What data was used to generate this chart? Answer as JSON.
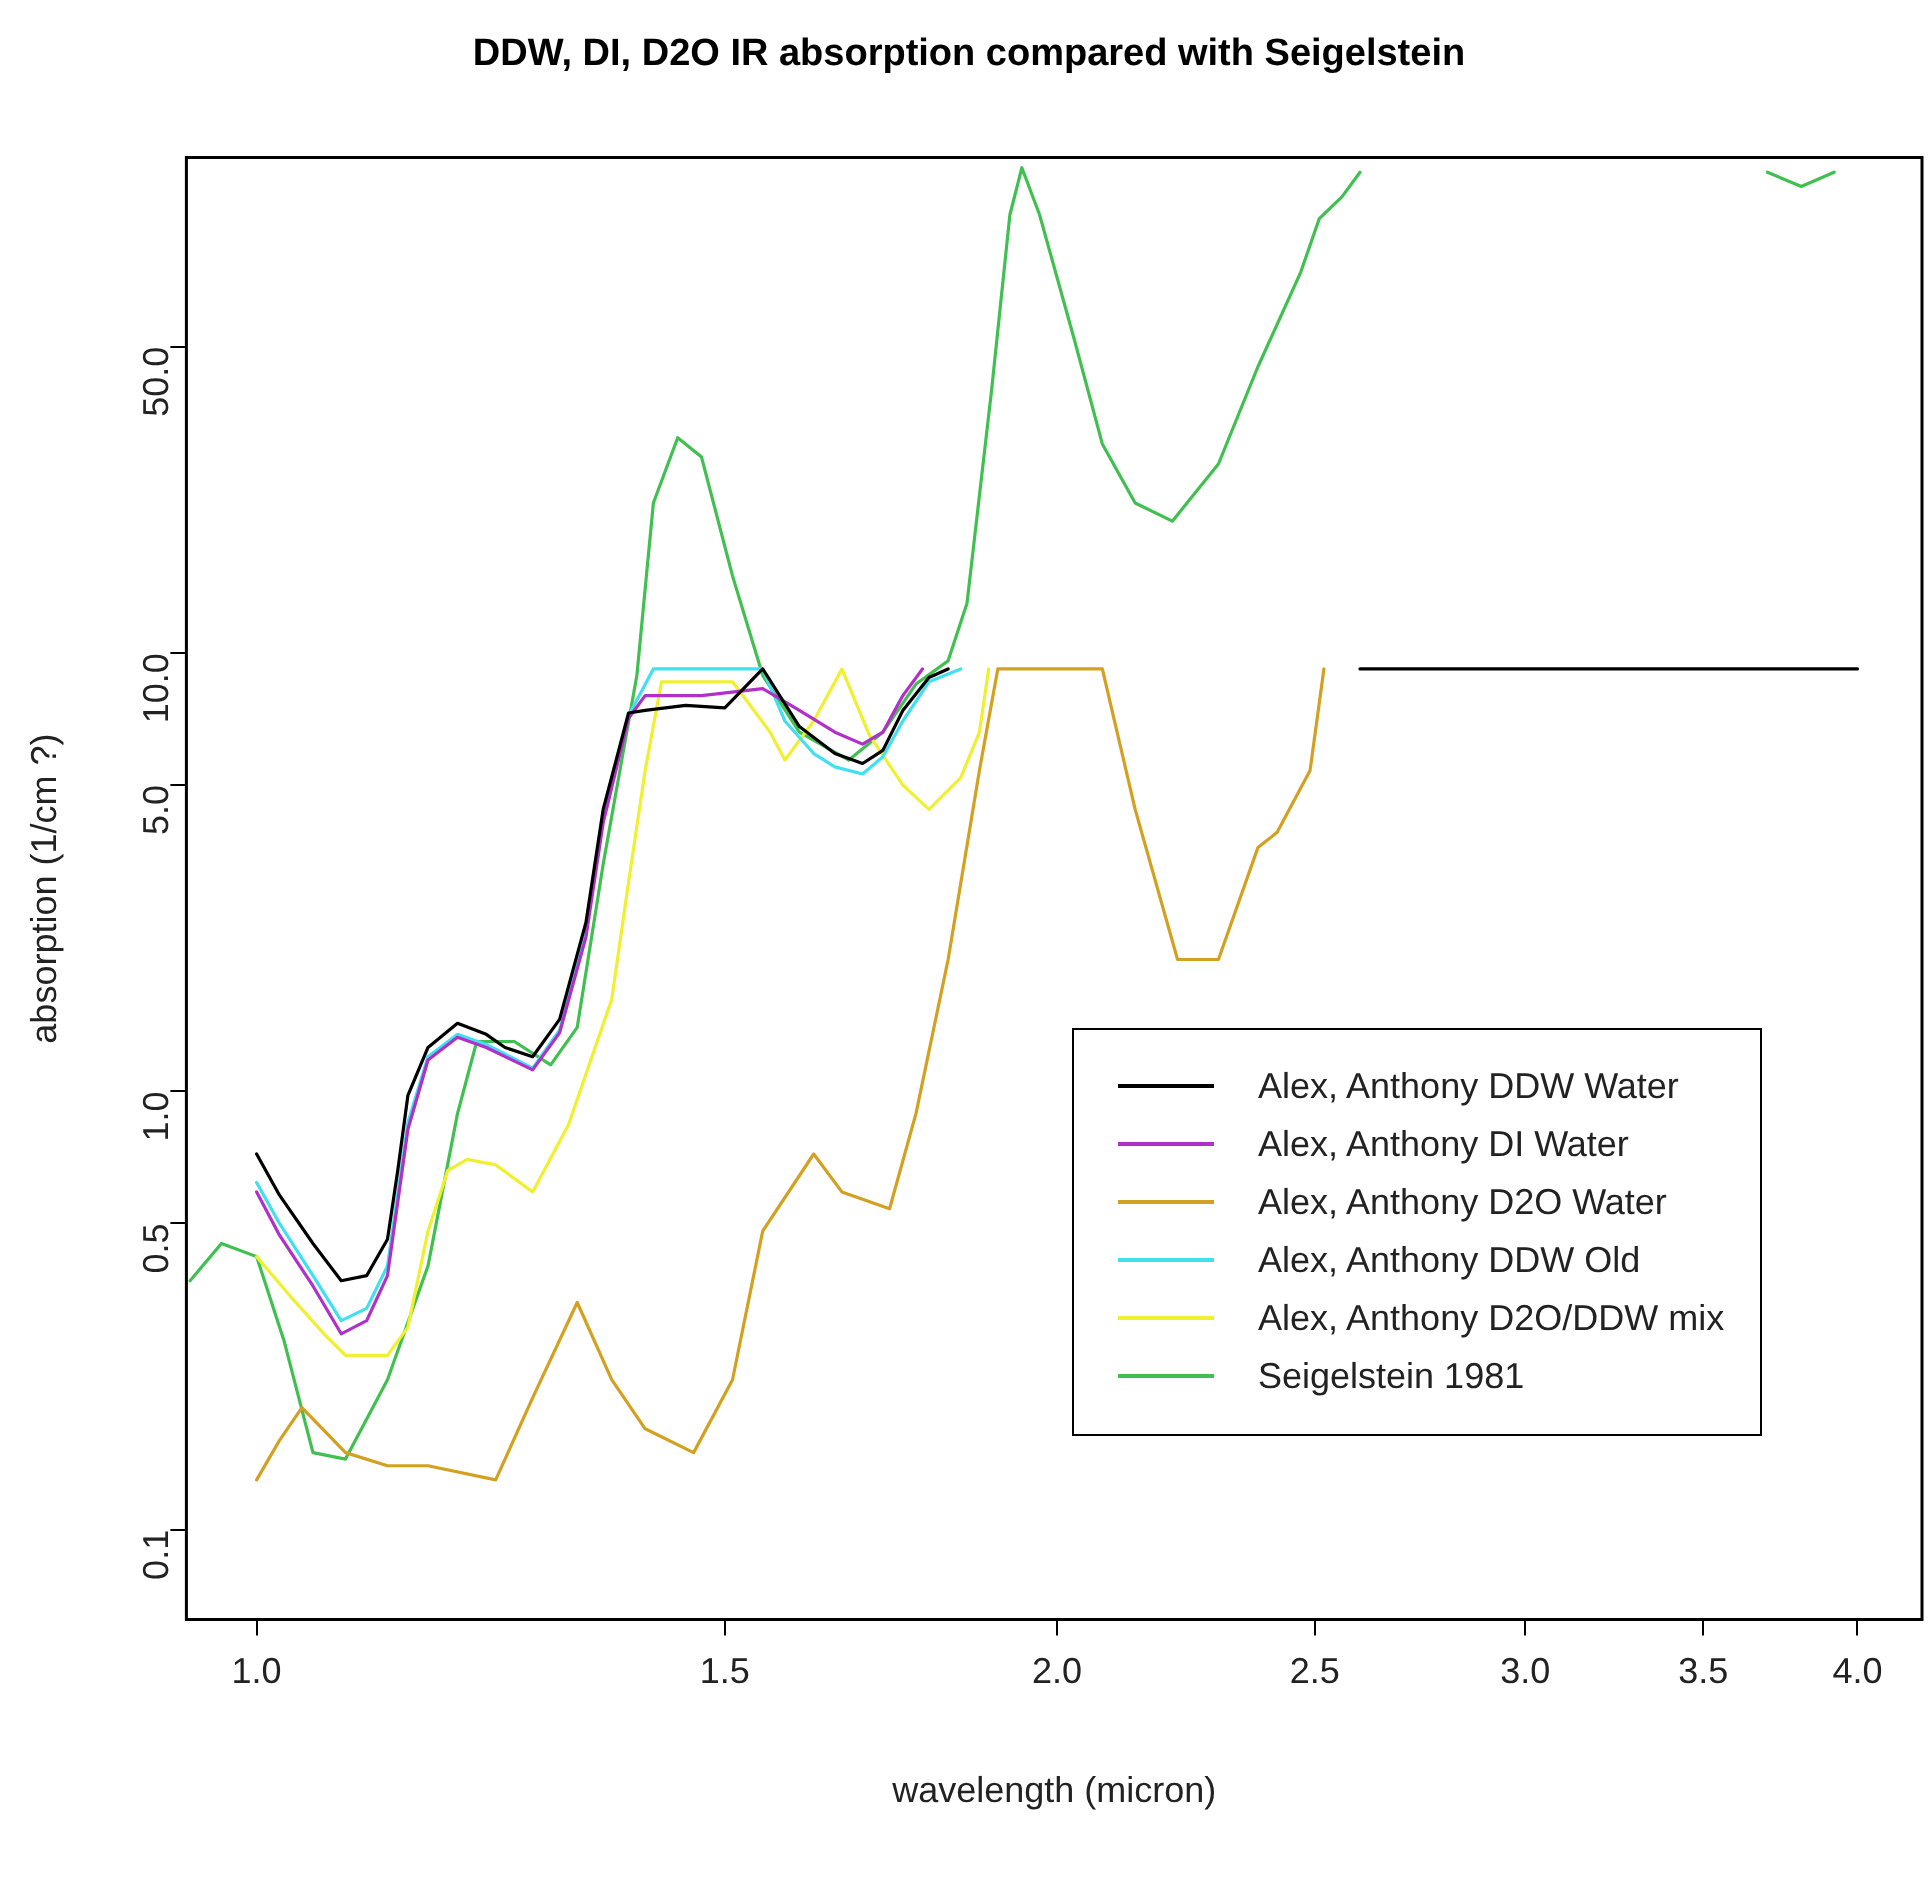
{
  "chart_data": {
    "type": "line",
    "title": "DDW, DI, D2O IR absorption compared with Seigelstein",
    "xlabel": "wavelength (micron)",
    "ylabel": "absorption (1/cm ?)",
    "log": "xy",
    "xlim": [
      0.941,
      4.23
    ],
    "ylim": [
      0.0624,
      135
    ],
    "xticks": [
      {
        "value": 1,
        "label": "1.0"
      },
      1.5,
      {
        "value": 2,
        "label": "2.0"
      },
      2.5,
      {
        "value": 3,
        "label": "3.0"
      },
      3.5,
      {
        "value": 4,
        "label": "4.0"
      }
    ],
    "yticks": [
      0.1,
      0.5,
      {
        "value": 1,
        "label": "1.0"
      },
      {
        "value": 5,
        "label": "5.0"
      },
      {
        "value": 10,
        "label": "10.0"
      },
      {
        "value": 50,
        "label": "50.0"
      }
    ],
    "legend": "bottom right",
    "series": [
      {
        "name": "Alex, Anthony DDW Water",
        "color": "#000000",
        "x": [
          1.0,
          1.02,
          1.05,
          1.076,
          1.1,
          1.12,
          1.13,
          1.14,
          1.16,
          1.19,
          1.22,
          1.24,
          1.27,
          1.3,
          1.33,
          1.35,
          1.38,
          1.4,
          1.45,
          1.5,
          1.55,
          1.6,
          1.65,
          1.69,
          1.72,
          1.75,
          1.79,
          1.82,
          2.2,
          2.6,
          3.0,
          3.5,
          4.0
        ],
        "values": [
          0.72,
          0.58,
          0.45,
          0.37,
          0.38,
          0.46,
          0.66,
          0.98,
          1.26,
          1.43,
          1.35,
          1.26,
          1.2,
          1.46,
          2.43,
          4.4,
          7.3,
          7.4,
          7.6,
          7.5,
          9.2,
          6.8,
          5.9,
          5.6,
          6.0,
          7.4,
          8.8,
          9.2,
          null,
          9.2,
          9.2,
          9.2,
          9.2
        ]
      },
      {
        "name": "Alex, Anthony DI Water",
        "color": "#b030c8",
        "x": [
          1.0,
          1.02,
          1.05,
          1.076,
          1.1,
          1.12,
          1.14,
          1.16,
          1.19,
          1.22,
          1.27,
          1.3,
          1.33,
          1.35,
          1.38,
          1.4,
          1.47,
          1.55,
          1.6,
          1.65,
          1.69,
          1.72,
          1.75,
          1.78
        ],
        "values": [
          0.59,
          0.47,
          0.36,
          0.28,
          0.3,
          0.38,
          0.82,
          1.18,
          1.33,
          1.26,
          1.12,
          1.36,
          2.25,
          4.1,
          7.1,
          8.0,
          8.0,
          8.3,
          7.4,
          6.6,
          6.2,
          6.6,
          8.0,
          9.2
        ]
      },
      {
        "name": "Alex, Anthony D2O Water",
        "color": "#d4a020",
        "x": [
          1.0,
          1.02,
          1.04,
          1.08,
          1.12,
          1.16,
          1.23,
          1.27,
          1.32,
          1.36,
          1.4,
          1.46,
          1.51,
          1.55,
          1.62,
          1.66,
          1.73,
          1.77,
          1.82,
          1.87,
          1.9,
          2.08,
          2.14,
          2.22,
          2.3,
          2.38,
          2.42,
          2.49,
          2.52
        ],
        "values": [
          0.13,
          0.16,
          0.19,
          0.15,
          0.14,
          0.14,
          0.13,
          0.2,
          0.33,
          0.22,
          0.17,
          0.15,
          0.22,
          0.48,
          0.72,
          0.59,
          0.54,
          0.89,
          2.0,
          5.4,
          9.2,
          9.2,
          4.4,
          2.0,
          2.0,
          3.6,
          3.9,
          5.4,
          9.2
        ]
      },
      {
        "name": "Alex, Anthony DDW Old",
        "color": "#40e0f0",
        "x": [
          1.0,
          1.02,
          1.05,
          1.076,
          1.1,
          1.12,
          1.14,
          1.16,
          1.19,
          1.22,
          1.27,
          1.3,
          1.33,
          1.35,
          1.38,
          1.41,
          1.55,
          1.58,
          1.62,
          1.65,
          1.69,
          1.72,
          1.75,
          1.79,
          1.84
        ],
        "values": [
          0.62,
          0.5,
          0.38,
          0.3,
          0.32,
          0.4,
          0.85,
          1.2,
          1.35,
          1.28,
          1.13,
          1.38,
          2.3,
          4.2,
          7.2,
          9.2,
          9.2,
          7.0,
          5.9,
          5.5,
          5.3,
          5.8,
          7.0,
          8.6,
          9.2
        ]
      },
      {
        "name": "Alex, Anthony D2O/DDW mix",
        "color": "#f0f030",
        "x": [
          1.0,
          1.03,
          1.06,
          1.08,
          1.12,
          1.14,
          1.16,
          1.18,
          1.2,
          1.23,
          1.27,
          1.31,
          1.36,
          1.38,
          1.4,
          1.42,
          1.51,
          1.56,
          1.58,
          1.62,
          1.66,
          1.7,
          1.75,
          1.79,
          1.84,
          1.87,
          1.885
        ],
        "values": [
          0.42,
          0.34,
          0.28,
          0.25,
          0.25,
          0.29,
          0.48,
          0.66,
          0.7,
          0.68,
          0.59,
          0.84,
          1.62,
          3.0,
          5.4,
          8.6,
          8.6,
          6.6,
          5.7,
          7.0,
          9.2,
          6.5,
          5.0,
          4.4,
          5.2,
          6.6,
          9.2
        ]
      },
      {
        "name": "Seigelstein 1981",
        "color": "#40c050",
        "x": [
          0.944,
          0.97,
          1.0,
          1.024,
          1.05,
          1.08,
          1.12,
          1.16,
          1.19,
          1.21,
          1.25,
          1.29,
          1.32,
          1.35,
          1.39,
          1.41,
          1.44,
          1.47,
          1.51,
          1.55,
          1.6,
          1.67,
          1.72,
          1.77,
          1.82,
          1.85,
          1.89,
          1.92,
          1.94,
          1.97,
          2.03,
          2.08,
          2.14,
          2.21,
          2.3,
          2.38,
          2.47,
          2.51,
          2.56,
          2.6,
          3.0,
          3.7,
          3.81,
          3.92
        ],
        "values": [
          0.37,
          0.45,
          0.42,
          0.27,
          0.15,
          0.145,
          0.22,
          0.4,
          0.89,
          1.3,
          1.3,
          1.15,
          1.4,
          3.3,
          8.9,
          22,
          31,
          28,
          15,
          8.9,
          6.6,
          5.7,
          6.6,
          8.5,
          9.6,
          13,
          40,
          100,
          128,
          100,
          52,
          30,
          22,
          20,
          27,
          45,
          74,
          98,
          110,
          125,
          null,
          125,
          116,
          125
        ]
      }
    ]
  }
}
